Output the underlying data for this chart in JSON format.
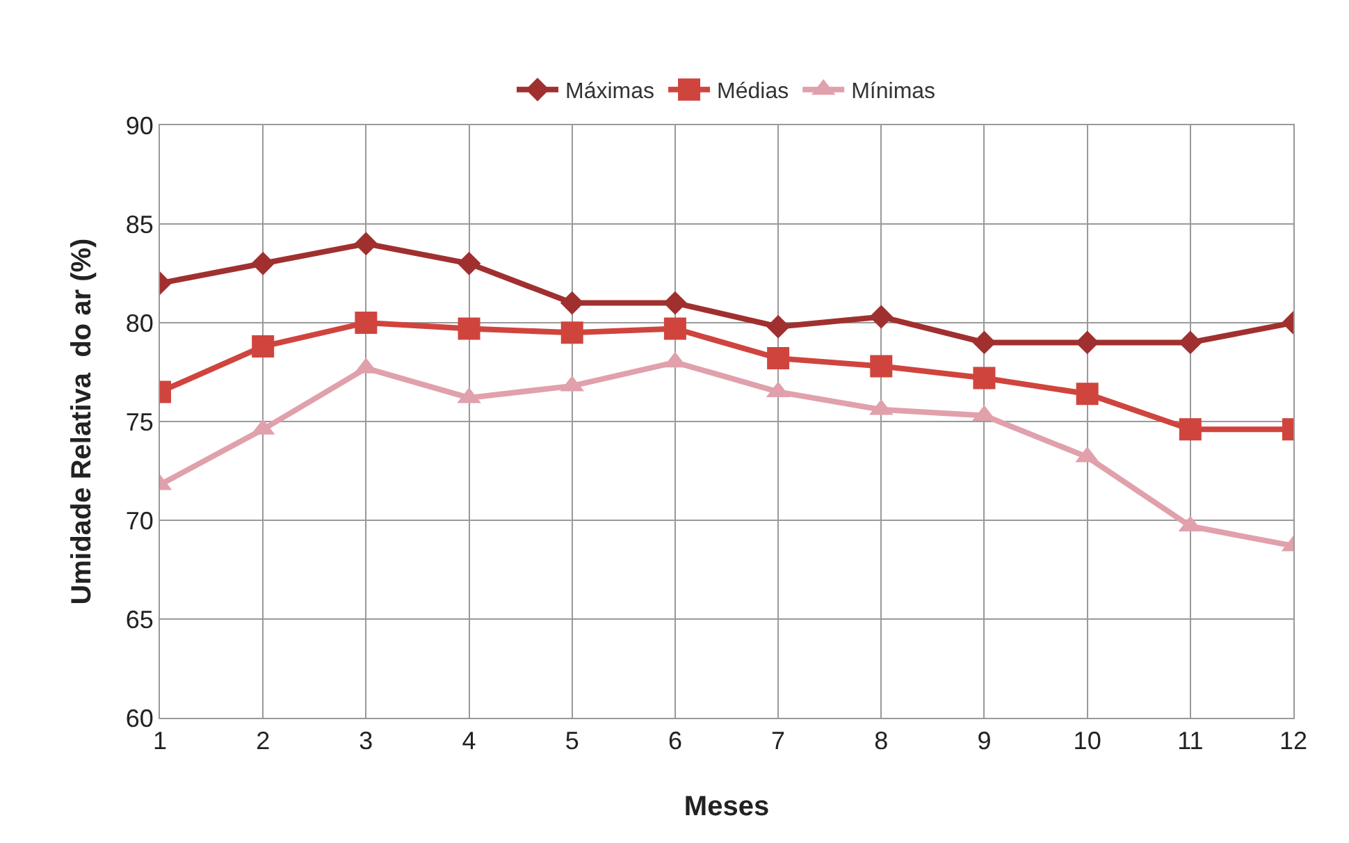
{
  "chart_data": {
    "type": "line",
    "xlabel": "Meses",
    "ylabel": "Umidade Relativa  do ar (%)",
    "x": [
      1,
      2,
      3,
      4,
      5,
      6,
      7,
      8,
      9,
      10,
      11,
      12
    ],
    "series": [
      {
        "name": "Máximas",
        "color": "#a0302f",
        "marker": "diamond",
        "values": [
          82,
          83,
          84,
          83,
          81,
          81,
          79.8,
          80.3,
          79,
          79,
          79,
          80
        ]
      },
      {
        "name": "Médias",
        "color": "#d0443e",
        "marker": "square",
        "values": [
          76.5,
          78.8,
          80,
          79.7,
          79.5,
          79.7,
          78.2,
          77.8,
          77.2,
          76.4,
          74.6,
          74.6
        ]
      },
      {
        "name": "Mínimas",
        "color": "#e0a0ac",
        "marker": "triangle",
        "values": [
          71.8,
          74.6,
          77.7,
          76.2,
          76.8,
          78,
          76.5,
          75.6,
          75.3,
          73.2,
          69.7,
          68.7
        ]
      }
    ],
    "xlim": [
      1,
      12
    ],
    "xticks": [
      1,
      2,
      3,
      4,
      5,
      6,
      7,
      8,
      9,
      10,
      11,
      12
    ],
    "ylim": [
      60,
      90
    ],
    "yticks": [
      60,
      65,
      70,
      75,
      80,
      85,
      90
    ],
    "grid": true,
    "legend": "top",
    "line_style": "solid"
  }
}
